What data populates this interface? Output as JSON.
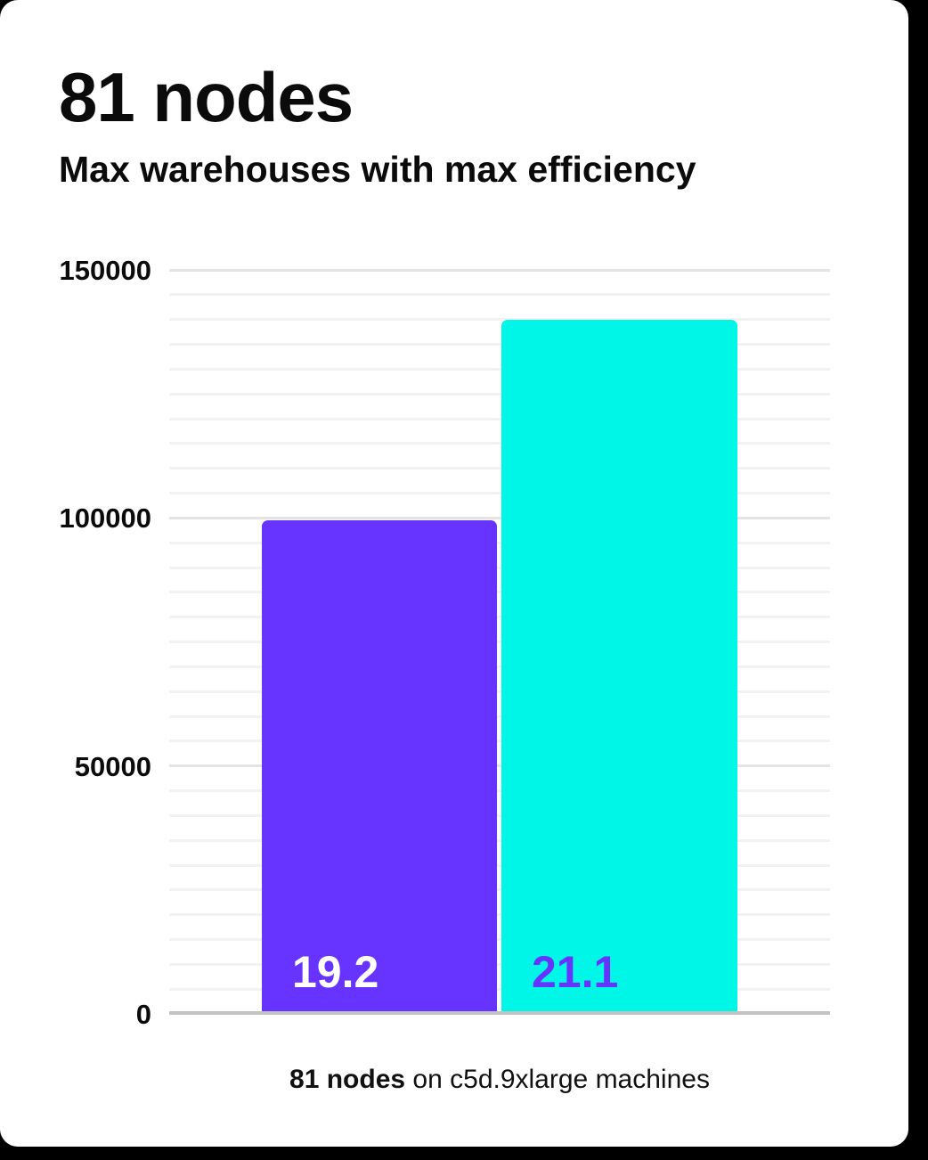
{
  "page": {
    "background": "#000000",
    "card_background": "#ffffff"
  },
  "header": {
    "title": "81 nodes",
    "subtitle": "Max warehouses with max efficiency"
  },
  "chart_data": {
    "type": "bar",
    "title": "81 nodes",
    "subtitle": "Max warehouses with max efficiency",
    "categories": [
      "19.2",
      "21.1"
    ],
    "values": [
      99500,
      140000
    ],
    "bar_labels": [
      "19.2",
      "21.1"
    ],
    "bar_colors": [
      "#6633FF",
      "#00F7E7"
    ],
    "bar_label_colors": [
      "#FFFFFF",
      "#6633FF"
    ],
    "xlabel": "",
    "ylabel": "",
    "yticks": [
      0,
      50000,
      100000,
      150000
    ],
    "ytick_labels": [
      "0",
      "50000",
      "100000",
      "150000"
    ],
    "ylim": [
      0,
      150000
    ],
    "minor_grid_step": 5000,
    "grid": true,
    "legend_position": "none",
    "caption": "81 nodes on c5d.9xlarge machines"
  },
  "caption": {
    "bold": "81 nodes",
    "rest": " on c5d.9xlarge machines"
  },
  "colors": {
    "grid_minor": "#f2f2f2",
    "grid_major": "#e4e4e4",
    "axis_baseline": "#c2c2c2",
    "text": "#0b0b0b"
  }
}
